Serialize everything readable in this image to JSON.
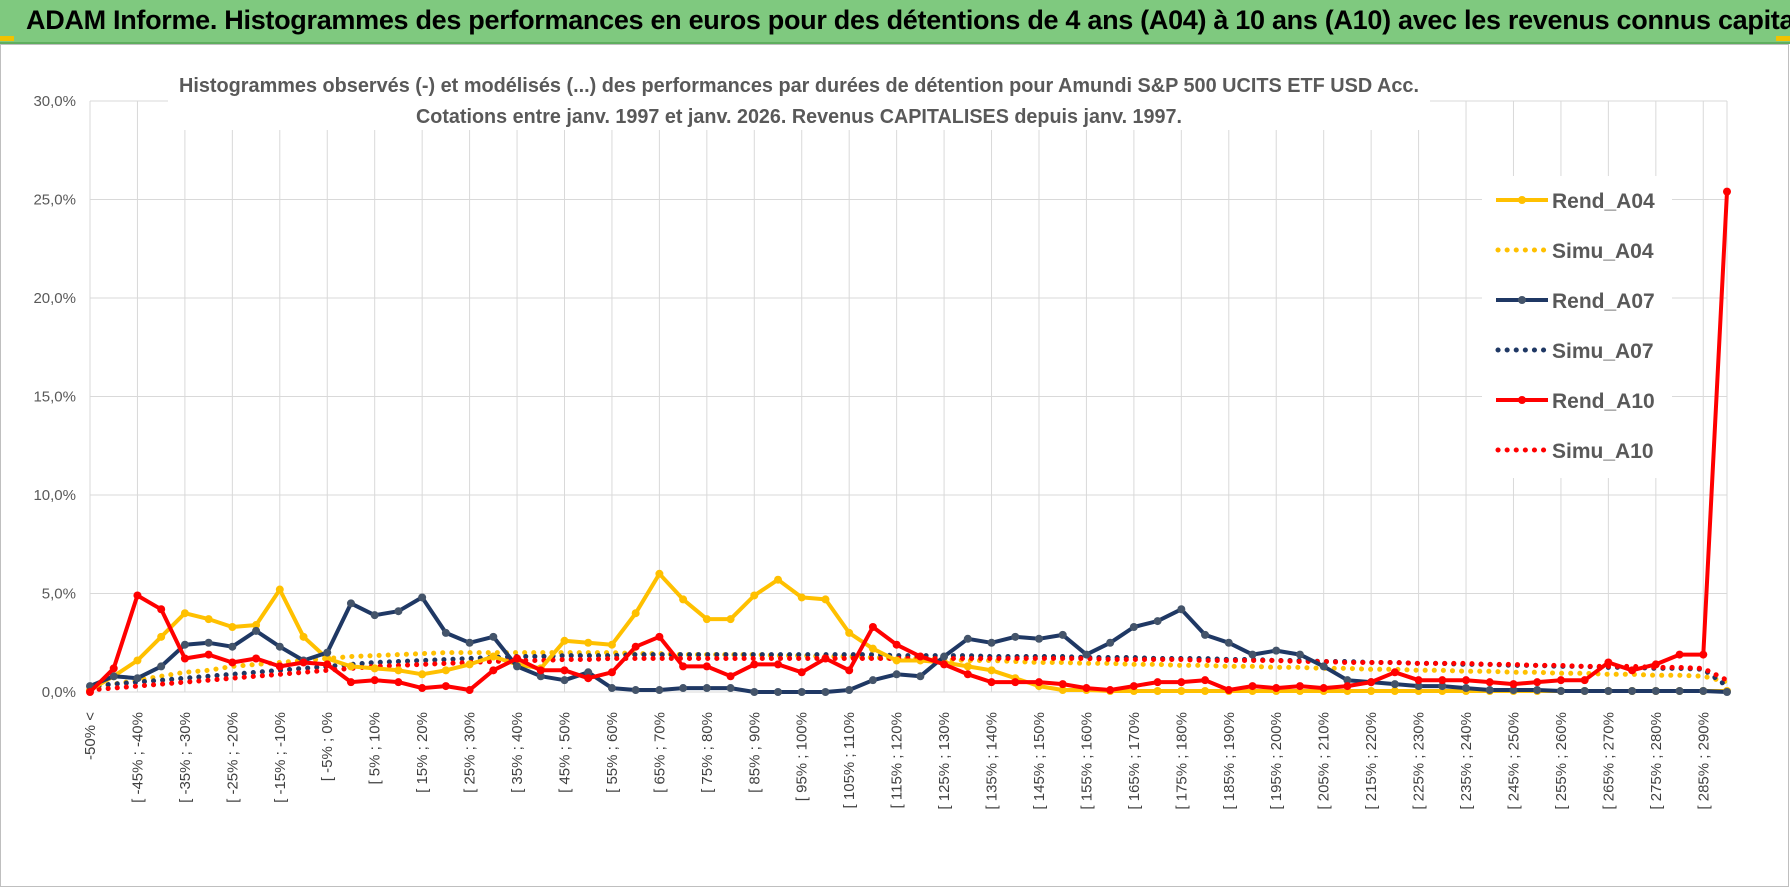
{
  "banner": {
    "title": "ADAM Informe. Histogrammes des performances en euros pour des détentions de 4 ans (A04) à 10 ans (A10) avec les revenus connus capitalisés"
  },
  "colors": {
    "banner_bg": "#7fc97f",
    "accent_corner": "#f2c200"
  },
  "chart_data": {
    "type": "line",
    "title_line1": "Histogrammes observés (-) et modélisés (...) des performances par durées de détention pour Amundi S&P 500 UCITS ETF USD Acc.",
    "title_line2": "Cotations entre janv. 1997 et janv. 2026. Revenus CAPITALISES depuis janv. 1997.",
    "ylim": [
      0,
      30
    ],
    "yticks": [
      "0,0%",
      "5,0%",
      "10,0%",
      "15,0%",
      "20,0%",
      "25,0%",
      "30,0%"
    ],
    "ytick_values": [
      0,
      5,
      10,
      15,
      20,
      25,
      30
    ],
    "grid": true,
    "legend_position": "right",
    "x_labels": [
      "-50% <",
      "[ -45% ; -40%",
      "[ -35% ; -30%",
      "[ -25% ; -20%",
      "[ -15% ; -10%",
      "[ -5% ; 0%",
      "[ 5% ; 10%",
      "[ 15% ; 20%",
      "[ 25% ; 30%",
      "[ 35% ; 40%",
      "[ 45% ; 50%",
      "[ 55% ; 60%",
      "[ 65% ; 70%",
      "[ 75% ; 80%",
      "[ 85% ; 90%",
      "[ 95% ; 100%",
      "[ 105% ; 110%",
      "[ 115% ; 120%",
      "[ 125% ; 130%",
      "[ 135% ; 140%",
      "[ 145% ; 150%",
      "[ 155% ; 160%",
      "[ 165% ; 170%",
      "[ 175% ; 180%",
      "[ 185% ; 190%",
      "[ 195% ; 200%",
      "[ 205% ; 210%",
      "[ 215% ; 220%",
      "[ 225% ; 230%",
      "[ 235% ; 240%",
      "[ 245% ; 250%",
      "[ 255% ; 260%",
      "[ 265% ; 270%",
      "[ 275% ; 280%",
      "[ 285% ; 290%"
    ],
    "series": [
      {
        "name": "Rend_A04",
        "color": "#ffc000",
        "style": "solid",
        "values": [
          0.1,
          0.8,
          1.6,
          2.8,
          4.0,
          3.7,
          3.3,
          3.4,
          5.2,
          2.8,
          1.7,
          1.3,
          1.2,
          1.1,
          0.9,
          1.1,
          1.4,
          1.8,
          1.4,
          1.2,
          2.6,
          2.5,
          2.4,
          4.0,
          6.0,
          4.7,
          3.7,
          3.7,
          4.9,
          5.7,
          4.8,
          4.7,
          3.0,
          2.2,
          1.6,
          1.6,
          1.5,
          1.3,
          1.1,
          0.7,
          0.3,
          0.1,
          0.1,
          0.05,
          0.05,
          0.05,
          0.05,
          0.05,
          0.05,
          0.05,
          0.05,
          0.05,
          0.05,
          0.05,
          0.05,
          0.05,
          0.05,
          0.05,
          0.05,
          0.05,
          0.05,
          0.05,
          0.05,
          0.05,
          0.05,
          0.05,
          0.05,
          0.05,
          0.05,
          0.05
        ]
      },
      {
        "name": "Simu_A04",
        "color": "#ffc000",
        "style": "dotted",
        "values": [
          0.2,
          0.4,
          0.6,
          0.8,
          1.0,
          1.1,
          1.3,
          1.4,
          1.5,
          1.6,
          1.7,
          1.8,
          1.85,
          1.9,
          1.95,
          2.0,
          2.0,
          2.0,
          2.0,
          2.0,
          2.0,
          2.0,
          2.0,
          1.95,
          1.95,
          1.9,
          1.9,
          1.9,
          1.9,
          1.85,
          1.85,
          1.8,
          1.8,
          1.75,
          1.7,
          1.7,
          1.65,
          1.6,
          1.6,
          1.55,
          1.5,
          1.5,
          1.45,
          1.45,
          1.4,
          1.4,
          1.35,
          1.35,
          1.3,
          1.3,
          1.25,
          1.25,
          1.2,
          1.2,
          1.15,
          1.15,
          1.1,
          1.1,
          1.05,
          1.05,
          1.0,
          1.0,
          0.95,
          0.95,
          0.9,
          0.9,
          0.85,
          0.85,
          0.8,
          0.5
        ]
      },
      {
        "name": "Rend_A07",
        "color": "#1f3864",
        "style": "solid",
        "values": [
          0.3,
          0.8,
          0.7,
          1.3,
          2.4,
          2.5,
          2.3,
          3.1,
          2.3,
          1.6,
          2.0,
          4.5,
          3.9,
          4.1,
          4.8,
          3.0,
          2.5,
          2.8,
          1.3,
          0.8,
          0.6,
          1.0,
          0.2,
          0.1,
          0.1,
          0.2,
          0.2,
          0.2,
          0.0,
          0.0,
          0.0,
          0.0,
          0.1,
          0.6,
          0.9,
          0.8,
          1.8,
          2.7,
          2.5,
          2.8,
          2.7,
          2.9,
          1.9,
          2.5,
          3.3,
          3.6,
          4.2,
          2.9,
          2.5,
          1.9,
          2.1,
          1.9,
          1.3,
          0.6,
          0.5,
          0.4,
          0.3,
          0.3,
          0.2,
          0.1,
          0.1,
          0.1,
          0.05,
          0.05,
          0.05,
          0.05,
          0.05,
          0.05,
          0.05,
          0.0
        ]
      },
      {
        "name": "Simu_A07",
        "color": "#1f3864",
        "style": "dotted",
        "values": [
          0.3,
          0.4,
          0.5,
          0.6,
          0.7,
          0.8,
          0.9,
          1.0,
          1.1,
          1.2,
          1.3,
          1.4,
          1.5,
          1.55,
          1.6,
          1.65,
          1.7,
          1.75,
          1.8,
          1.8,
          1.85,
          1.85,
          1.85,
          1.9,
          1.9,
          1.9,
          1.9,
          1.9,
          1.9,
          1.9,
          1.9,
          1.9,
          1.9,
          1.9,
          1.85,
          1.85,
          1.85,
          1.85,
          1.8,
          1.8,
          1.8,
          1.8,
          1.75,
          1.75,
          1.75,
          1.7,
          1.7,
          1.7,
          1.65,
          1.65,
          1.6,
          1.6,
          1.55,
          1.55,
          1.5,
          1.5,
          1.45,
          1.45,
          1.4,
          1.4,
          1.35,
          1.35,
          1.3,
          1.3,
          1.25,
          1.25,
          1.2,
          1.2,
          1.15,
          0.3
        ]
      },
      {
        "name": "Rend_A10",
        "color": "#ff0000",
        "style": "solid",
        "values": [
          0.0,
          1.2,
          4.9,
          4.2,
          1.7,
          1.9,
          1.5,
          1.7,
          1.3,
          1.5,
          1.4,
          0.5,
          0.6,
          0.5,
          0.2,
          0.3,
          0.1,
          1.1,
          1.7,
          1.1,
          1.1,
          0.7,
          1.0,
          2.3,
          2.8,
          1.3,
          1.3,
          0.8,
          1.4,
          1.4,
          1.0,
          1.7,
          1.1,
          3.3,
          2.4,
          1.8,
          1.4,
          0.9,
          0.5,
          0.5,
          0.5,
          0.4,
          0.2,
          0.1,
          0.3,
          0.5,
          0.5,
          0.6,
          0.1,
          0.3,
          0.2,
          0.3,
          0.2,
          0.3,
          0.5,
          1.0,
          0.6,
          0.6,
          0.6,
          0.5,
          0.4,
          0.5,
          0.6,
          0.6,
          1.5,
          1.1,
          1.4,
          1.9,
          1.9,
          25.4
        ]
      },
      {
        "name": "Simu_A10",
        "color": "#ff0000",
        "style": "dotted",
        "values": [
          0.1,
          0.2,
          0.3,
          0.4,
          0.5,
          0.6,
          0.7,
          0.8,
          0.9,
          1.0,
          1.1,
          1.2,
          1.3,
          1.35,
          1.4,
          1.45,
          1.5,
          1.55,
          1.6,
          1.6,
          1.65,
          1.65,
          1.7,
          1.7,
          1.7,
          1.7,
          1.7,
          1.7,
          1.7,
          1.7,
          1.7,
          1.7,
          1.7,
          1.7,
          1.7,
          1.7,
          1.7,
          1.7,
          1.7,
          1.7,
          1.7,
          1.7,
          1.7,
          1.65,
          1.65,
          1.65,
          1.65,
          1.6,
          1.6,
          1.6,
          1.6,
          1.55,
          1.55,
          1.5,
          1.5,
          1.5,
          1.45,
          1.45,
          1.45,
          1.4,
          1.4,
          1.35,
          1.35,
          1.3,
          1.3,
          1.3,
          1.25,
          1.25,
          1.2,
          0.6
        ]
      }
    ]
  }
}
